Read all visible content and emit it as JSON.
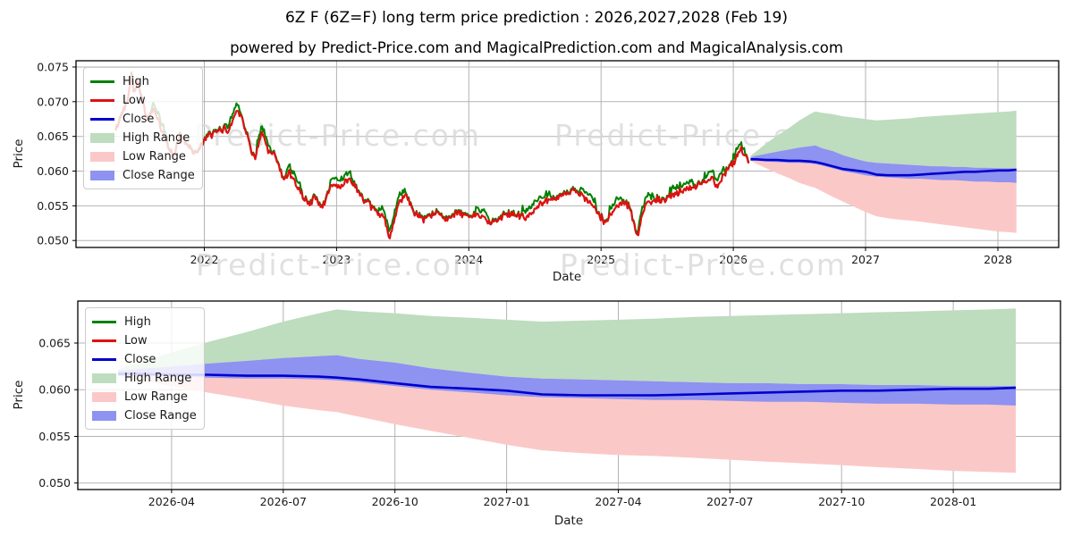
{
  "title": "6Z F (6Z=F) long term price prediction : 2026,2027,2028 (Feb 19)",
  "subtitle": "powered by Predict-Price.com and MagicalPrediction.com and MagicalAnalysis.com",
  "watermark": {
    "text": "Predict-Price.com"
  },
  "colors": {
    "high": "#008000",
    "low": "#dd1111",
    "close": "#0000cc",
    "high_range": "#bedcbe",
    "low_range": "#fbc8c8",
    "close_range": "#8e92f0",
    "watermark": "#d9d9d9",
    "grid": "#b3b3b3",
    "frame": "#000000",
    "text": "#1a1a1a"
  },
  "legend": {
    "items": [
      {
        "label": "High",
        "swatch": "line",
        "color": "high"
      },
      {
        "label": "Low",
        "swatch": "line",
        "color": "low"
      },
      {
        "label": "Close",
        "swatch": "line",
        "color": "close"
      },
      {
        "label": "High Range",
        "swatch": "patch",
        "color": "high_range"
      },
      {
        "label": "Low Range",
        "swatch": "patch",
        "color": "low_range"
      },
      {
        "label": "Close Range",
        "swatch": "patch",
        "color": "close_range"
      }
    ]
  },
  "chart_data": {
    "type": "line",
    "prediction": {
      "x": [
        2026.13,
        2026.17,
        2026.25,
        2026.33,
        2026.42,
        2026.5,
        2026.58,
        2026.62,
        2026.67,
        2026.75,
        2026.83,
        2026.92,
        2027.0,
        2027.08,
        2027.17,
        2027.25,
        2027.33,
        2027.42,
        2027.5,
        2027.58,
        2027.67,
        2027.75,
        2027.83,
        2027.92,
        2028.0,
        2028.08,
        2028.14
      ],
      "high_range_top": [
        0.0622,
        0.0628,
        0.064,
        0.0651,
        0.0662,
        0.0673,
        0.0682,
        0.0686,
        0.0684,
        0.0682,
        0.0679,
        0.0677,
        0.0675,
        0.0673,
        0.0674,
        0.0675,
        0.0676,
        0.0678,
        0.0679,
        0.068,
        0.0681,
        0.0682,
        0.0683,
        0.0684,
        0.0685,
        0.0686,
        0.0687
      ],
      "close_range_top": [
        0.062,
        0.0622,
        0.0625,
        0.0628,
        0.0631,
        0.0634,
        0.0636,
        0.0637,
        0.0633,
        0.0629,
        0.0623,
        0.0618,
        0.0614,
        0.0612,
        0.0611,
        0.061,
        0.0609,
        0.0608,
        0.0607,
        0.0607,
        0.0606,
        0.0606,
        0.0605,
        0.0605,
        0.0604,
        0.0604,
        0.0604
      ],
      "close": [
        0.0617,
        0.0617,
        0.0616,
        0.0616,
        0.0615,
        0.0615,
        0.0614,
        0.0613,
        0.0611,
        0.0607,
        0.0603,
        0.0601,
        0.0599,
        0.0595,
        0.0594,
        0.0594,
        0.0594,
        0.0595,
        0.0596,
        0.0597,
        0.0598,
        0.0599,
        0.0599,
        0.06,
        0.0601,
        0.0601,
        0.0602
      ],
      "close_range_bottom": [
        0.0615,
        0.0615,
        0.0614,
        0.0613,
        0.0612,
        0.0612,
        0.0611,
        0.061,
        0.0608,
        0.0604,
        0.06,
        0.0597,
        0.0594,
        0.0592,
        0.0591,
        0.059,
        0.0589,
        0.0589,
        0.0588,
        0.0587,
        0.0587,
        0.0586,
        0.0585,
        0.0585,
        0.0584,
        0.0584,
        0.0583
      ],
      "low_range_bottom": [
        0.0615,
        0.0611,
        0.0604,
        0.0597,
        0.059,
        0.0583,
        0.0578,
        0.0576,
        0.0571,
        0.0563,
        0.0556,
        0.0548,
        0.0541,
        0.0535,
        0.0532,
        0.053,
        0.0529,
        0.0527,
        0.0525,
        0.0523,
        0.0521,
        0.0519,
        0.0517,
        0.0515,
        0.0513,
        0.0512,
        0.0511
      ]
    },
    "top": {
      "xlabel": "Date",
      "ylabel": "Price",
      "xlim": [
        2021.03,
        2028.46
      ],
      "ylim": [
        0.049,
        0.0759
      ],
      "x_ticks": [
        {
          "label": "2022",
          "x": 2022
        },
        {
          "label": "2023",
          "x": 2023
        },
        {
          "label": "2024",
          "x": 2024
        },
        {
          "label": "2025",
          "x": 2025
        },
        {
          "label": "2026",
          "x": 2026
        },
        {
          "label": "2027",
          "x": 2027
        },
        {
          "label": "2028",
          "x": 2028
        }
      ],
      "y_ticks": [
        {
          "label": "0.075",
          "y": 0.075
        },
        {
          "label": "0.070",
          "y": 0.07
        },
        {
          "label": "0.065",
          "y": 0.065
        },
        {
          "label": "0.060",
          "y": 0.06
        },
        {
          "label": "0.055",
          "y": 0.055
        },
        {
          "label": "0.050",
          "y": 0.05
        }
      ],
      "historical_low_keypoints": [
        [
          2021.33,
          0.0658
        ],
        [
          2021.38,
          0.0684
        ],
        [
          2021.42,
          0.0703
        ],
        [
          2021.45,
          0.074
        ],
        [
          2021.47,
          0.0713
        ],
        [
          2021.5,
          0.073
        ],
        [
          2021.53,
          0.07
        ],
        [
          2021.57,
          0.0674
        ],
        [
          2021.62,
          0.069
        ],
        [
          2021.67,
          0.0662
        ],
        [
          2021.72,
          0.0638
        ],
        [
          2021.77,
          0.062
        ],
        [
          2021.82,
          0.0654
        ],
        [
          2021.87,
          0.0638
        ],
        [
          2021.92,
          0.0627
        ],
        [
          2021.97,
          0.0633
        ],
        [
          2022.02,
          0.065
        ],
        [
          2022.08,
          0.0654
        ],
        [
          2022.14,
          0.0661
        ],
        [
          2022.19,
          0.0659
        ],
        [
          2022.24,
          0.0688
        ],
        [
          2022.28,
          0.0682
        ],
        [
          2022.33,
          0.0646
        ],
        [
          2022.38,
          0.0618
        ],
        [
          2022.44,
          0.0656
        ],
        [
          2022.48,
          0.0627
        ],
        [
          2022.53,
          0.0625
        ],
        [
          2022.6,
          0.0586
        ],
        [
          2022.64,
          0.0601
        ],
        [
          2022.69,
          0.0582
        ],
        [
          2022.79,
          0.0551
        ],
        [
          2022.84,
          0.0564
        ],
        [
          2022.89,
          0.0545
        ],
        [
          2022.96,
          0.0581
        ],
        [
          2023.03,
          0.0577
        ],
        [
          2023.1,
          0.059
        ],
        [
          2023.21,
          0.0557
        ],
        [
          2023.3,
          0.0542
        ],
        [
          2023.36,
          0.0533
        ],
        [
          2023.4,
          0.0501
        ],
        [
          2023.47,
          0.0553
        ],
        [
          2023.52,
          0.0569
        ],
        [
          2023.59,
          0.0538
        ],
        [
          2023.66,
          0.0529
        ],
        [
          2023.75,
          0.054
        ],
        [
          2023.84,
          0.0532
        ],
        [
          2023.92,
          0.054
        ],
        [
          2024.0,
          0.0534
        ],
        [
          2024.09,
          0.0538
        ],
        [
          2024.16,
          0.0525
        ],
        [
          2024.22,
          0.0532
        ],
        [
          2024.33,
          0.0539
        ],
        [
          2024.43,
          0.0532
        ],
        [
          2024.53,
          0.0551
        ],
        [
          2024.65,
          0.0562
        ],
        [
          2024.74,
          0.0567
        ],
        [
          2024.81,
          0.0573
        ],
        [
          2024.88,
          0.056
        ],
        [
          2024.95,
          0.0546
        ],
        [
          2025.03,
          0.0525
        ],
        [
          2025.1,
          0.0545
        ],
        [
          2025.16,
          0.0556
        ],
        [
          2025.22,
          0.0548
        ],
        [
          2025.27,
          0.0503
        ],
        [
          2025.33,
          0.0548
        ],
        [
          2025.4,
          0.056
        ],
        [
          2025.47,
          0.0556
        ],
        [
          2025.55,
          0.0568
        ],
        [
          2025.62,
          0.0572
        ],
        [
          2025.7,
          0.0578
        ],
        [
          2025.78,
          0.0584
        ],
        [
          2025.84,
          0.0592
        ],
        [
          2025.88,
          0.0576
        ],
        [
          2025.95,
          0.0601
        ],
        [
          2026.0,
          0.0612
        ],
        [
          2026.06,
          0.0632
        ],
        [
          2026.1,
          0.0618
        ],
        [
          2026.12,
          0.0616
        ]
      ],
      "high_visible_segments": [
        [
          2021.6,
          2021.72
        ],
        [
          2022.16,
          2022.27
        ],
        [
          2022.4,
          2022.5
        ],
        [
          2022.62,
          2022.73
        ],
        [
          2022.95,
          2023.12
        ],
        [
          2023.32,
          2023.52
        ],
        [
          2024.05,
          2024.15
        ],
        [
          2024.4,
          2024.62
        ],
        [
          2024.84,
          2024.96
        ],
        [
          2025.06,
          2025.16
        ],
        [
          2025.28,
          2025.4
        ],
        [
          2025.52,
          2025.7
        ],
        [
          2025.78,
          2025.94
        ],
        [
          2026.0,
          2026.09
        ]
      ]
    },
    "bottom": {
      "xlabel": "Date",
      "ylabel": "Price",
      "xlim": [
        2026.04,
        2028.24
      ],
      "ylim": [
        0.0493,
        0.0695
      ],
      "x_ticks": [
        {
          "label": "2026-04",
          "x": 2026.25
        },
        {
          "label": "2026-07",
          "x": 2026.5
        },
        {
          "label": "2026-10",
          "x": 2026.75
        },
        {
          "label": "2027-01",
          "x": 2027.0
        },
        {
          "label": "2027-04",
          "x": 2027.25
        },
        {
          "label": "2027-07",
          "x": 2027.5
        },
        {
          "label": "2027-10",
          "x": 2027.75
        },
        {
          "label": "2028-01",
          "x": 2028.0
        }
      ],
      "y_ticks": [
        {
          "label": "0.065",
          "y": 0.065
        },
        {
          "label": "0.060",
          "y": 0.06
        },
        {
          "label": "0.055",
          "y": 0.055
        },
        {
          "label": "0.050",
          "y": 0.05
        }
      ]
    }
  }
}
